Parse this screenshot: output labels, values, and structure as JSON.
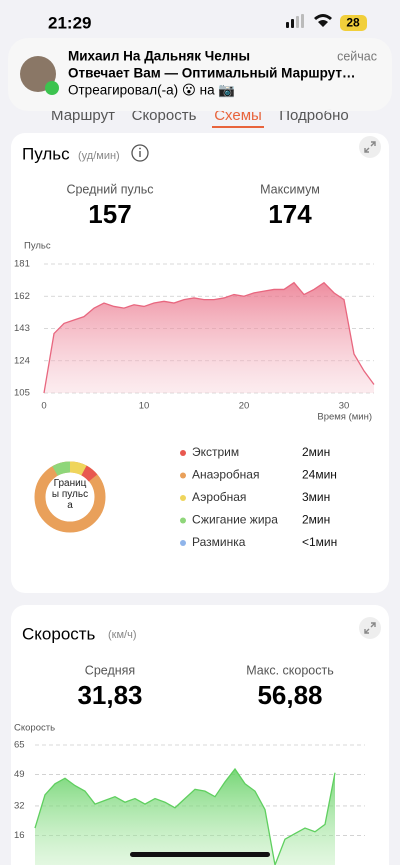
{
  "status": {
    "time": "21:29",
    "battery": "28"
  },
  "notification": {
    "sender": "Михаил На Дальняк Челны",
    "time": "сейчас",
    "line1": "Отвечает Вам — Оптимальный Маршрут…",
    "line2": "Отреагировал(-а) 😮 на 📷"
  },
  "tabs": [
    "Маршрут",
    "Скорость",
    "Схемы",
    "Подробно"
  ],
  "pulse_card": {
    "title": "Пульс",
    "unit": "(уд/мин)",
    "stats": [
      {
        "label": "Средний пульс",
        "value": "157"
      },
      {
        "label": "Максимум",
        "value": "174"
      }
    ]
  },
  "zones": {
    "label": "Границы пульса",
    "items": [
      {
        "name": "Экстрим",
        "duration": "2мин",
        "color": "#e8584f"
      },
      {
        "name": "Анаэробная",
        "duration": "24мин",
        "color": "#e9a05a"
      },
      {
        "name": "Аэробная",
        "duration": "3мин",
        "color": "#efd55c"
      },
      {
        "name": "Сжигание жира",
        "duration": "2мин",
        "color": "#8fd67a"
      },
      {
        "name": "Разминка",
        "duration": "<1мин",
        "color": "#8fb4ea"
      }
    ]
  },
  "speed_card": {
    "title": "Скорость",
    "unit": "(км/ч)",
    "stats": [
      {
        "label": "Средняя",
        "value": "31,83"
      },
      {
        "label": "Макс. скорость",
        "value": "56,88"
      }
    ]
  },
  "chart_data": [
    {
      "type": "area",
      "y_label": "Пульс",
      "x_label": "Время (мин)",
      "color": "#e8677f",
      "grid": true,
      "xlim": [
        0,
        33
      ],
      "ylim": [
        105,
        181
      ],
      "xticks": [
        0,
        10,
        20,
        30
      ],
      "yticks": [
        105,
        124,
        143,
        162,
        181
      ],
      "x": [
        0,
        1,
        2,
        3,
        4,
        5,
        6,
        7,
        8,
        9,
        10,
        11,
        12,
        13,
        14,
        15,
        16,
        17,
        18,
        19,
        20,
        21,
        22,
        23,
        24,
        25,
        26,
        27,
        28,
        29,
        30,
        31,
        32,
        33
      ],
      "values": [
        105,
        140,
        146,
        148,
        150,
        155,
        158,
        156,
        155,
        157,
        156,
        158,
        159,
        158,
        160,
        161,
        160,
        160,
        161,
        163,
        162,
        164,
        165,
        166,
        166,
        170,
        163,
        166,
        170,
        164,
        160,
        128,
        118,
        110
      ]
    },
    {
      "type": "area",
      "y_label": "Скорость",
      "color": "#5fcf5f",
      "grid": true,
      "xlim": [
        0,
        33
      ],
      "ylim": [
        0,
        65
      ],
      "yticks": [
        16,
        32,
        49,
        65
      ],
      "x": [
        0,
        1,
        2,
        3,
        4,
        5,
        6,
        7,
        8,
        9,
        10,
        11,
        12,
        13,
        14,
        15,
        16,
        17,
        18,
        19,
        20,
        21,
        22,
        23,
        24,
        25,
        26,
        27,
        28,
        29,
        30
      ],
      "values": [
        20,
        38,
        44,
        47,
        43,
        40,
        33,
        35,
        37,
        34,
        36,
        33,
        36,
        34,
        31,
        36,
        41,
        40,
        37,
        45,
        52,
        44,
        40,
        30,
        0,
        14,
        17,
        20,
        18,
        22,
        50
      ]
    }
  ]
}
